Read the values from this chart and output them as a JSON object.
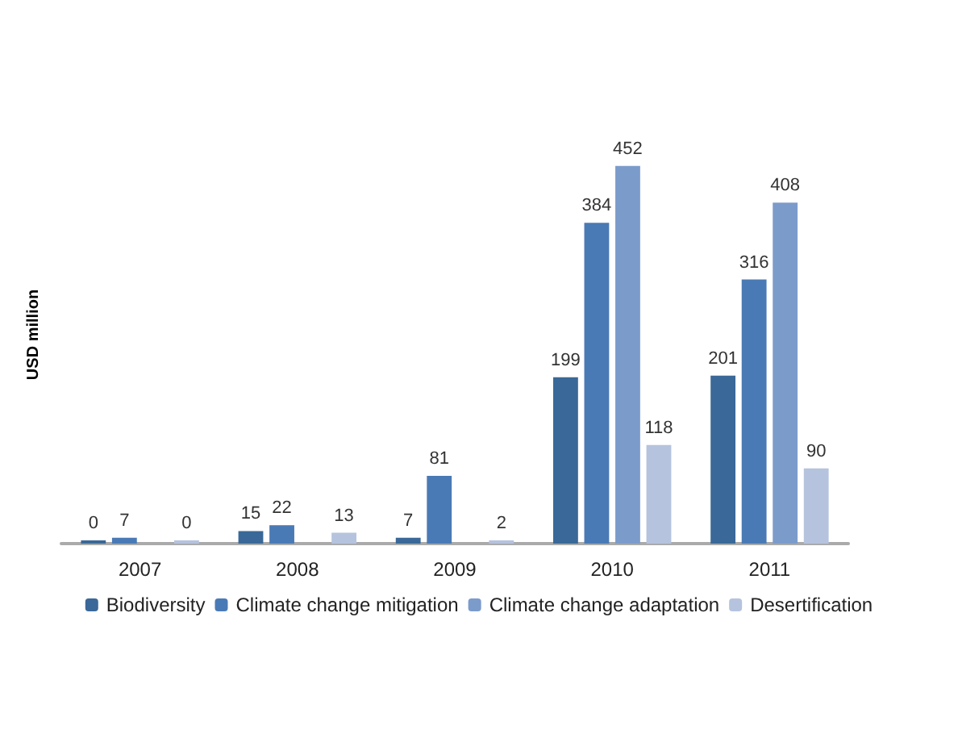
{
  "chart_data": {
    "type": "bar",
    "ylabel": "USD million",
    "categories": [
      "2007",
      "2008",
      "2009",
      "2010",
      "2011"
    ],
    "series": [
      {
        "name": "Biodiversity",
        "color": "#3a6898",
        "values": [
          0,
          15,
          7,
          199,
          201
        ]
      },
      {
        "name": "Climate change mitigation",
        "color": "#4a7ab5",
        "values": [
          7,
          22,
          81,
          384,
          316
        ]
      },
      {
        "name": "Climate change adaptation",
        "color": "#7b9bcb",
        "values": [
          null,
          null,
          null,
          452,
          408
        ]
      },
      {
        "name": "Desertification",
        "color": "#b5c3de",
        "values": [
          0,
          13,
          2,
          118,
          90
        ]
      }
    ],
    "data_labels": true,
    "legend": "bottom",
    "grid": false
  }
}
